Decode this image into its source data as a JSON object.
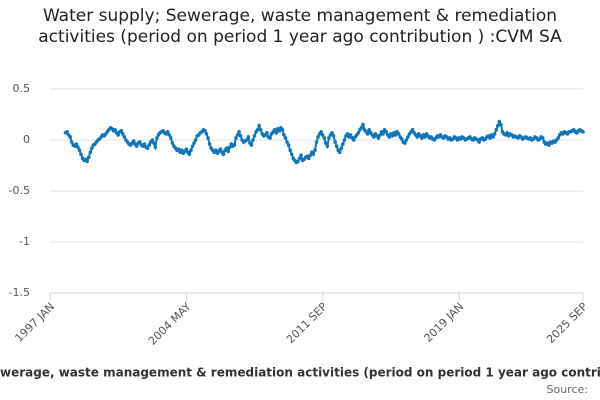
{
  "chart_data": {
    "type": "line",
    "title": "Water supply; Sewerage, waste management & remediation activities (period on period 1 year ago contribution ) :CVM SA",
    "source": "Source:",
    "categories": [
      "1997 JAN",
      null,
      null,
      null,
      null,
      null,
      null,
      null,
      null,
      null,
      null,
      null,
      null,
      null,
      null,
      null,
      null,
      null,
      null,
      null,
      null,
      null,
      null,
      null,
      null,
      null,
      null,
      null,
      null,
      null,
      null,
      null,
      null,
      null,
      null,
      null,
      null,
      null,
      null,
      null,
      null,
      null,
      null,
      null,
      null,
      null,
      null,
      null,
      null,
      null,
      null,
      null,
      null,
      null,
      null,
      null,
      null,
      null,
      null,
      null,
      null,
      null,
      null,
      null,
      null,
      null,
      null,
      null,
      null,
      null,
      null,
      null,
      null,
      null,
      null,
      null,
      null,
      null,
      null,
      null,
      null,
      null,
      null,
      null,
      null,
      null,
      null,
      null,
      "2004 MAY",
      null,
      null,
      null,
      null,
      null,
      null,
      null,
      null,
      null,
      null,
      null,
      null,
      null,
      null,
      null,
      null,
      null,
      null,
      null,
      null,
      null,
      null,
      null,
      null,
      null,
      null,
      null,
      null,
      null,
      null,
      null,
      null,
      null,
      null,
      null,
      null,
      null,
      null,
      null,
      null,
      null,
      null,
      null,
      null,
      null,
      null,
      null,
      null,
      null,
      null,
      null,
      null,
      null,
      null,
      null,
      null,
      null,
      null,
      null,
      null,
      null,
      null,
      null,
      null,
      null,
      null,
      null,
      null,
      null,
      null,
      null,
      null,
      null,
      null,
      null,
      null,
      null,
      null,
      null,
      null,
      null,
      null,
      null,
      null,
      null,
      null,
      null,
      "2011 SEP",
      null,
      null,
      null,
      null,
      null,
      null,
      null,
      null,
      null,
      null,
      null,
      null,
      null,
      null,
      null,
      null,
      null,
      null,
      null,
      null,
      null,
      null,
      null,
      null,
      null,
      null,
      null,
      null,
      null,
      null,
      null,
      null,
      null,
      null,
      null,
      null,
      null,
      null,
      null,
      null,
      null,
      null,
      null,
      null,
      null,
      null,
      null,
      null,
      null,
      null,
      null,
      null,
      null,
      null,
      null,
      null,
      null,
      null,
      null,
      null,
      null,
      null,
      null,
      null,
      null,
      null,
      null,
      null,
      null,
      null,
      null,
      null,
      null,
      null,
      null,
      null,
      null,
      null,
      null,
      null,
      null,
      null,
      null,
      null,
      null,
      null,
      null,
      "2019 JAN",
      null,
      null,
      null,
      null,
      null,
      null,
      null,
      null,
      null,
      null,
      null,
      null,
      null,
      null,
      null,
      null,
      null,
      null,
      null,
      null,
      null,
      null,
      null,
      null,
      null,
      null,
      null,
      null,
      null,
      null,
      null,
      null,
      null,
      null,
      null,
      null,
      null,
      null,
      null,
      null,
      null,
      null,
      null,
      null,
      null,
      null,
      null,
      null,
      null,
      null,
      null,
      null,
      null,
      null,
      null,
      null,
      null,
      null,
      null,
      null,
      null,
      null,
      null,
      null,
      null,
      null,
      null,
      null,
      null,
      null,
      null,
      null,
      null,
      null,
      null,
      null,
      null,
      null,
      null,
      "2025 SEP"
    ],
    "series": [
      {
        "name": "Water supply; Sewerage, waste management & remediation activities (period on period 1 year ago contribution ) :CVM SA",
        "color": "#0f75bc",
        "values": [
          null,
          null,
          null,
          null,
          null,
          null,
          null,
          null,
          null,
          null,
          0.07,
          0.08,
          0.05,
          0.03,
          -0.02,
          -0.05,
          -0.06,
          -0.04,
          -0.07,
          -0.1,
          -0.14,
          -0.18,
          -0.2,
          -0.19,
          -0.21,
          -0.17,
          -0.12,
          -0.08,
          -0.05,
          -0.04,
          -0.02,
          0.0,
          0.01,
          0.03,
          0.05,
          0.04,
          0.06,
          0.08,
          0.1,
          0.12,
          0.11,
          0.09,
          0.1,
          0.07,
          0.05,
          0.08,
          0.09,
          0.06,
          0.03,
          0.0,
          -0.02,
          -0.04,
          -0.05,
          -0.03,
          -0.01,
          -0.04,
          -0.06,
          -0.03,
          -0.02,
          -0.05,
          -0.06,
          -0.04,
          -0.07,
          -0.08,
          -0.05,
          -0.02,
          0.0,
          -0.03,
          -0.07,
          0.02,
          0.05,
          0.07,
          0.08,
          0.09,
          0.07,
          0.06,
          0.08,
          0.05,
          0.02,
          -0.03,
          -0.06,
          -0.08,
          -0.1,
          -0.09,
          -0.12,
          -0.1,
          -0.13,
          -0.11,
          -0.09,
          -0.12,
          -0.14,
          -0.1,
          -0.06,
          -0.03,
          0.0,
          0.04,
          0.05,
          0.07,
          0.08,
          0.1,
          0.09,
          0.06,
          0.02,
          -0.04,
          -0.08,
          -0.1,
          -0.12,
          -0.1,
          -0.13,
          -0.11,
          -0.09,
          -0.12,
          -0.14,
          -0.1,
          -0.08,
          -0.11,
          -0.07,
          -0.04,
          -0.06,
          -0.05,
          0.02,
          0.05,
          0.08,
          0.04,
          0.0,
          -0.02,
          -0.01,
          0.0,
          0.03,
          -0.03,
          -0.05,
          0.0,
          0.04,
          0.08,
          0.1,
          0.14,
          0.1,
          0.06,
          0.04,
          0.05,
          0.07,
          0.03,
          0.02,
          0.06,
          0.08,
          0.1,
          0.07,
          0.11,
          0.09,
          0.12,
          0.1,
          0.05,
          0.02,
          -0.02,
          -0.05,
          -0.1,
          -0.14,
          -0.18,
          -0.2,
          -0.22,
          -0.21,
          -0.18,
          -0.15,
          -0.2,
          -0.19,
          -0.17,
          -0.16,
          -0.18,
          -0.15,
          -0.12,
          -0.14,
          -0.1,
          -0.02,
          0.03,
          0.06,
          0.08,
          0.05,
          0.02,
          -0.03,
          -0.06,
          0.02,
          0.05,
          0.07,
          0.04,
          -0.02,
          -0.06,
          -0.1,
          -0.12,
          -0.08,
          -0.04,
          0.0,
          0.04,
          0.06,
          0.03,
          0.05,
          0.02,
          0.0,
          0.03,
          0.05,
          0.07,
          0.1,
          0.12,
          0.15,
          0.1,
          0.08,
          0.06,
          0.1,
          0.07,
          0.05,
          0.03,
          0.06,
          0.04,
          0.02,
          0.05,
          0.08,
          0.06,
          0.1,
          0.08,
          0.05,
          0.03,
          0.06,
          0.04,
          0.07,
          0.05,
          0.08,
          0.06,
          0.03,
          0.01,
          -0.02,
          -0.03,
          0.0,
          0.03,
          0.06,
          0.08,
          0.1,
          0.07,
          0.05,
          0.03,
          0.06,
          0.04,
          0.02,
          0.05,
          0.03,
          0.06,
          0.04,
          0.02,
          0.03,
          0.01,
          0.0,
          0.02,
          0.04,
          0.03,
          0.05,
          0.03,
          0.02,
          0.04,
          0.03,
          0.01,
          0.02,
          0.0,
          0.01,
          0.03,
          0.02,
          0.0,
          0.02,
          0.01,
          0.03,
          0.02,
          0.0,
          0.01,
          0.02,
          0.03,
          0.01,
          0.0,
          0.02,
          0.01,
          0.0,
          -0.02,
          0.01,
          0.02,
          0.0,
          0.01,
          0.03,
          0.04,
          0.02,
          0.05,
          0.03,
          0.06,
          0.1,
          0.14,
          0.18,
          0.15,
          0.08,
          0.06,
          0.05,
          0.07,
          0.04,
          0.06,
          0.05,
          0.03,
          0.04,
          0.03,
          0.02,
          0.04,
          0.03,
          0.01,
          0.02,
          0.03,
          0.02,
          0.01,
          0.02,
          0.0,
          0.01,
          0.03,
          0.02,
          0.0,
          0.01,
          0.03,
          0.02,
          -0.02,
          -0.04,
          -0.03,
          -0.05,
          -0.02,
          -0.03,
          -0.01,
          -0.02,
          0.0,
          0.02,
          0.05,
          0.07,
          0.06,
          0.08,
          0.07,
          0.06,
          0.08,
          0.08,
          0.09,
          0.1,
          0.08,
          0.07,
          0.09,
          0.1,
          0.09,
          0.08
        ]
      }
    ],
    "ylim": [
      -1.5,
      0.5
    ],
    "yticks": [
      0.5,
      0,
      -0.5,
      -1,
      -1.5
    ],
    "grid": true
  }
}
